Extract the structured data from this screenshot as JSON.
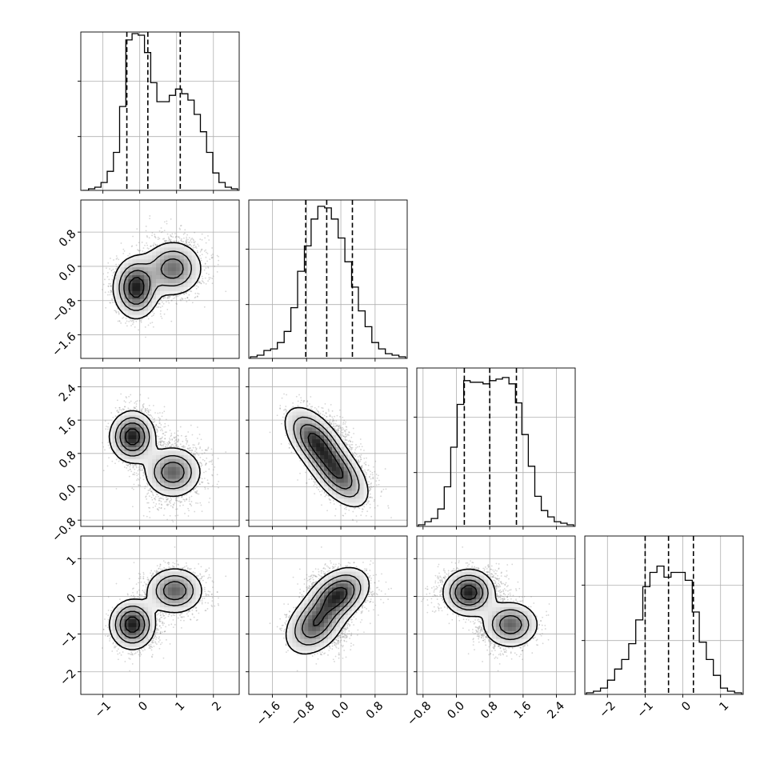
{
  "chart_data": {
    "type": "corner",
    "grid": true,
    "legend": "none",
    "hist_color": "#000000",
    "contour_color": "#000000",
    "ranges": [
      [
        -1.6,
        2.7
      ],
      [
        -2.15,
        1.55
      ],
      [
        -0.95,
        2.85
      ],
      [
        -2.6,
        1.6
      ]
    ],
    "tick_labels": [
      [
        "−1",
        "0",
        "1",
        "2"
      ],
      [
        "−1.6",
        "−0.8",
        "0.0",
        "0.8"
      ],
      [
        "−0.8",
        "0.0",
        "0.8",
        "1.6",
        "2.4"
      ],
      [
        "−2",
        "−1",
        "0",
        "1"
      ]
    ],
    "tick_values": [
      [
        -1,
        0,
        1,
        2
      ],
      [
        -1.6,
        -0.8,
        0.0,
        0.8
      ],
      [
        -0.8,
        0.0,
        0.8,
        1.6,
        2.4
      ],
      [
        -2,
        -1,
        0,
        1
      ]
    ],
    "quantiles": [
      [
        -0.35,
        0.22,
        1.1
      ],
      [
        -0.82,
        -0.33,
        0.27
      ],
      [
        0.19,
        0.8,
        1.44
      ],
      [
        -1.0,
        -0.38,
        0.28
      ]
    ],
    "histograms": [
      [
        0.0,
        0.01,
        0.02,
        0.05,
        0.12,
        0.24,
        0.53,
        0.95,
        0.99,
        0.98,
        0.87,
        0.68,
        0.56,
        0.56,
        0.6,
        0.64,
        0.61,
        0.57,
        0.48,
        0.37,
        0.24,
        0.11,
        0.05,
        0.02,
        0.01
      ],
      [
        0.01,
        0.02,
        0.05,
        0.06,
        0.1,
        0.17,
        0.32,
        0.55,
        0.71,
        0.88,
        0.96,
        0.95,
        0.88,
        0.76,
        0.61,
        0.45,
        0.3,
        0.2,
        0.1,
        0.06,
        0.03,
        0.02,
        0.01
      ],
      [
        0.01,
        0.03,
        0.05,
        0.11,
        0.25,
        0.5,
        0.77,
        0.92,
        0.91,
        0.91,
        0.9,
        0.92,
        0.93,
        0.94,
        0.9,
        0.78,
        0.58,
        0.38,
        0.19,
        0.1,
        0.06,
        0.03,
        0.02,
        0.01
      ],
      [
        0.01,
        0.02,
        0.04,
        0.09,
        0.16,
        0.22,
        0.32,
        0.47,
        0.68,
        0.77,
        0.81,
        0.74,
        0.77,
        0.77,
        0.72,
        0.52,
        0.33,
        0.22,
        0.12,
        0.04,
        0.02,
        0.01
      ]
    ],
    "modes": [
      {
        "weight": 0.55,
        "mean": [
          -0.1,
          -0.5,
          1.2,
          -0.8
        ],
        "sd": [
          0.28,
          0.32,
          0.28,
          0.28
        ]
      },
      {
        "weight": 0.45,
        "mean": [
          0.9,
          0.0,
          0.35,
          0.15
        ],
        "sd": [
          0.38,
          0.36,
          0.35,
          0.3
        ]
      }
    ],
    "pair_density": [
      {
        "row": 1,
        "col": 0,
        "peaks": [
          {
            "x": -0.1,
            "y": -0.5,
            "sx": 0.3,
            "sy": 0.35,
            "w": 1.0
          },
          {
            "x": 0.9,
            "y": -0.05,
            "sx": 0.4,
            "sy": 0.32,
            "w": 0.7
          }
        ]
      },
      {
        "row": 2,
        "col": 0,
        "peaks": [
          {
            "x": -0.2,
            "y": 1.2,
            "sx": 0.3,
            "sy": 0.3,
            "w": 1.0
          },
          {
            "x": 0.9,
            "y": 0.35,
            "sx": 0.38,
            "sy": 0.3,
            "w": 0.75
          }
        ]
      },
      {
        "row": 2,
        "col": 1,
        "peaks": [
          {
            "x": -0.6,
            "y": 1.1,
            "sx": 0.35,
            "sy": 0.4,
            "w": 1.0
          },
          {
            "x": -0.05,
            "y": 0.3,
            "sx": 0.35,
            "sy": 0.4,
            "w": 0.9
          }
        ],
        "corr": -0.55
      },
      {
        "row": 3,
        "col": 0,
        "peaks": [
          {
            "x": -0.2,
            "y": -0.75,
            "sx": 0.3,
            "sy": 0.32,
            "w": 1.0
          },
          {
            "x": 0.95,
            "y": 0.15,
            "sx": 0.38,
            "sy": 0.3,
            "w": 0.75
          }
        ]
      },
      {
        "row": 3,
        "col": 1,
        "peaks": [
          {
            "x": -0.6,
            "y": -0.75,
            "sx": 0.35,
            "sy": 0.4,
            "w": 0.85
          },
          {
            "x": -0.05,
            "y": 0.05,
            "sx": 0.35,
            "sy": 0.35,
            "w": 1.0
          }
        ],
        "corr": 0.35
      },
      {
        "row": 3,
        "col": 2,
        "peaks": [
          {
            "x": 0.3,
            "y": 0.1,
            "sx": 0.3,
            "sy": 0.3,
            "w": 1.0
          },
          {
            "x": 1.3,
            "y": -0.75,
            "sx": 0.33,
            "sy": 0.3,
            "w": 0.75
          }
        ]
      }
    ]
  }
}
